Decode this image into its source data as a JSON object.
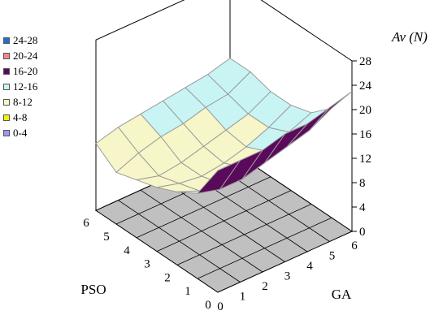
{
  "chart_data": {
    "type": "surface",
    "zlabel": "Av (N)",
    "xlabel": "GA",
    "ylabel": "PSO",
    "x": [
      0,
      1,
      2,
      3,
      4,
      5,
      6
    ],
    "y": [
      0,
      1,
      2,
      3,
      4,
      5,
      6
    ],
    "zlim": [
      0,
      28
    ],
    "zticks": [
      "0",
      "4",
      "8",
      "12",
      "16",
      "20",
      "24",
      "28"
    ],
    "xticks": [
      "0",
      "1",
      "2",
      "3",
      "4",
      "5",
      "6"
    ],
    "yticks": [
      "0",
      "1",
      "2",
      "3",
      "4",
      "5",
      "6"
    ],
    "grid": true,
    "legend_position": "left",
    "legend": [
      {
        "label": "24-28",
        "color": "#1f6fd0"
      },
      {
        "label": "20-24",
        "color": "#f08a8a"
      },
      {
        "label": "16-20",
        "color": "#5a0a5a"
      },
      {
        "label": "12-16",
        "color": "#c8f4f4"
      },
      {
        "label": "8-12",
        "color": "#f6f6c8"
      },
      {
        "label": "4-8",
        "color": "#f4f400"
      },
      {
        "label": "0-4",
        "color": "#9a9af0"
      }
    ],
    "z": [
      [
        20,
        20,
        20,
        21,
        21,
        22,
        23
      ],
      [
        14,
        13,
        13,
        14,
        15,
        16,
        18
      ],
      [
        12,
        10.5,
        10,
        11,
        12,
        13.5,
        15
      ],
      [
        10.5,
        9.5,
        9,
        9.5,
        10.5,
        12,
        14
      ],
      [
        9.5,
        8.5,
        9,
        10,
        11,
        12,
        14
      ],
      [
        8.5,
        10,
        11,
        11.5,
        12.5,
        13,
        15
      ],
      [
        11,
        12,
        12.5,
        13,
        13.5,
        14,
        15
      ]
    ]
  }
}
